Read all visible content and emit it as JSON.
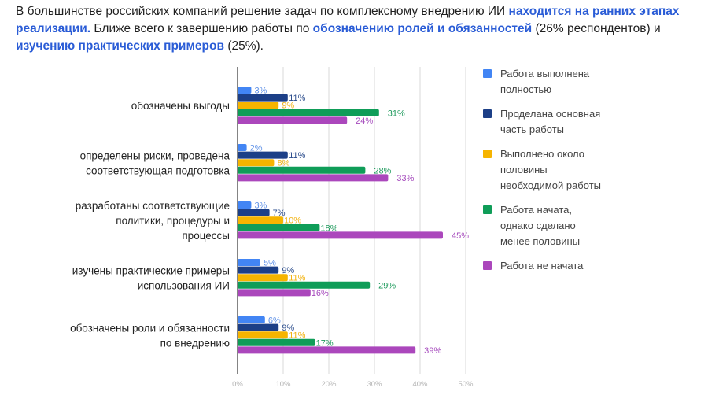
{
  "intro": {
    "part1": "В большинстве российских компаний решение задач по комплексному внедрению ИИ ",
    "hl1": "находится на ранних этапах реализации.",
    "part2": " Ближе всего к завершению работы по ",
    "hl2": "обозначению ролей и обязанностей",
    "part3": " (26% респондентов) и ",
    "hl3": "изучению практических примеров",
    "part4": " (25%)."
  },
  "colors": {
    "series": [
      "#4285F4",
      "#1C3F87",
      "#F6B400",
      "#0F9D58",
      "#AB47BC"
    ],
    "labels": [
      "#5b8ee6",
      "#2b4c8c",
      "#f2b20f",
      "#1e9a5c",
      "#a64cbd"
    ],
    "grid": "#d9d9d9",
    "axis": "#333333",
    "highlight": "#2a5cd6"
  },
  "chart_data": {
    "type": "bar",
    "orientation": "horizontal",
    "title": "",
    "xlabel": "",
    "ylabel": "",
    "xlim": [
      0,
      50
    ],
    "ticks": [
      0,
      10,
      20,
      30,
      40,
      50
    ],
    "tick_labels": [
      "0%",
      "10%",
      "20%",
      "30%",
      "40%",
      "50%"
    ],
    "grid": true,
    "legend_position": "right",
    "categories": [
      [
        "обозначены выгоды"
      ],
      [
        "определены риски, проведена",
        "соответствующая подготовка"
      ],
      [
        "разработаны соответствующие",
        "политики, процедуры и",
        "процессы"
      ],
      [
        "изучены практические примеры",
        "использования ИИ"
      ],
      [
        "обозначены роли и обязанности",
        "по внедрению"
      ]
    ],
    "series": [
      {
        "name": "Работа выполнена полностью",
        "legend_lines": [
          "Работа выполнена",
          "полностью"
        ],
        "values": [
          3,
          2,
          3,
          5,
          6
        ]
      },
      {
        "name": "Проделана основная часть работы",
        "legend_lines": [
          "Проделана основная",
          "часть работы"
        ],
        "values": [
          11,
          11,
          7,
          9,
          9
        ]
      },
      {
        "name": "Выполнено около половины необходимой работы",
        "legend_lines": [
          "Выполнено около",
          "половины",
          "необходимой работы"
        ],
        "values": [
          9,
          8,
          10,
          11,
          11
        ]
      },
      {
        "name": "Работа начата, однако сделано менее половины",
        "legend_lines": [
          "Работа начата,",
          "однако сделано",
          "менее половины"
        ],
        "values": [
          31,
          28,
          18,
          29,
          17
        ]
      },
      {
        "name": "Работа не начата",
        "legend_lines": [
          "Работа не начата"
        ],
        "values": [
          24,
          33,
          45,
          16,
          39
        ]
      }
    ],
    "value_suffix": "%"
  }
}
